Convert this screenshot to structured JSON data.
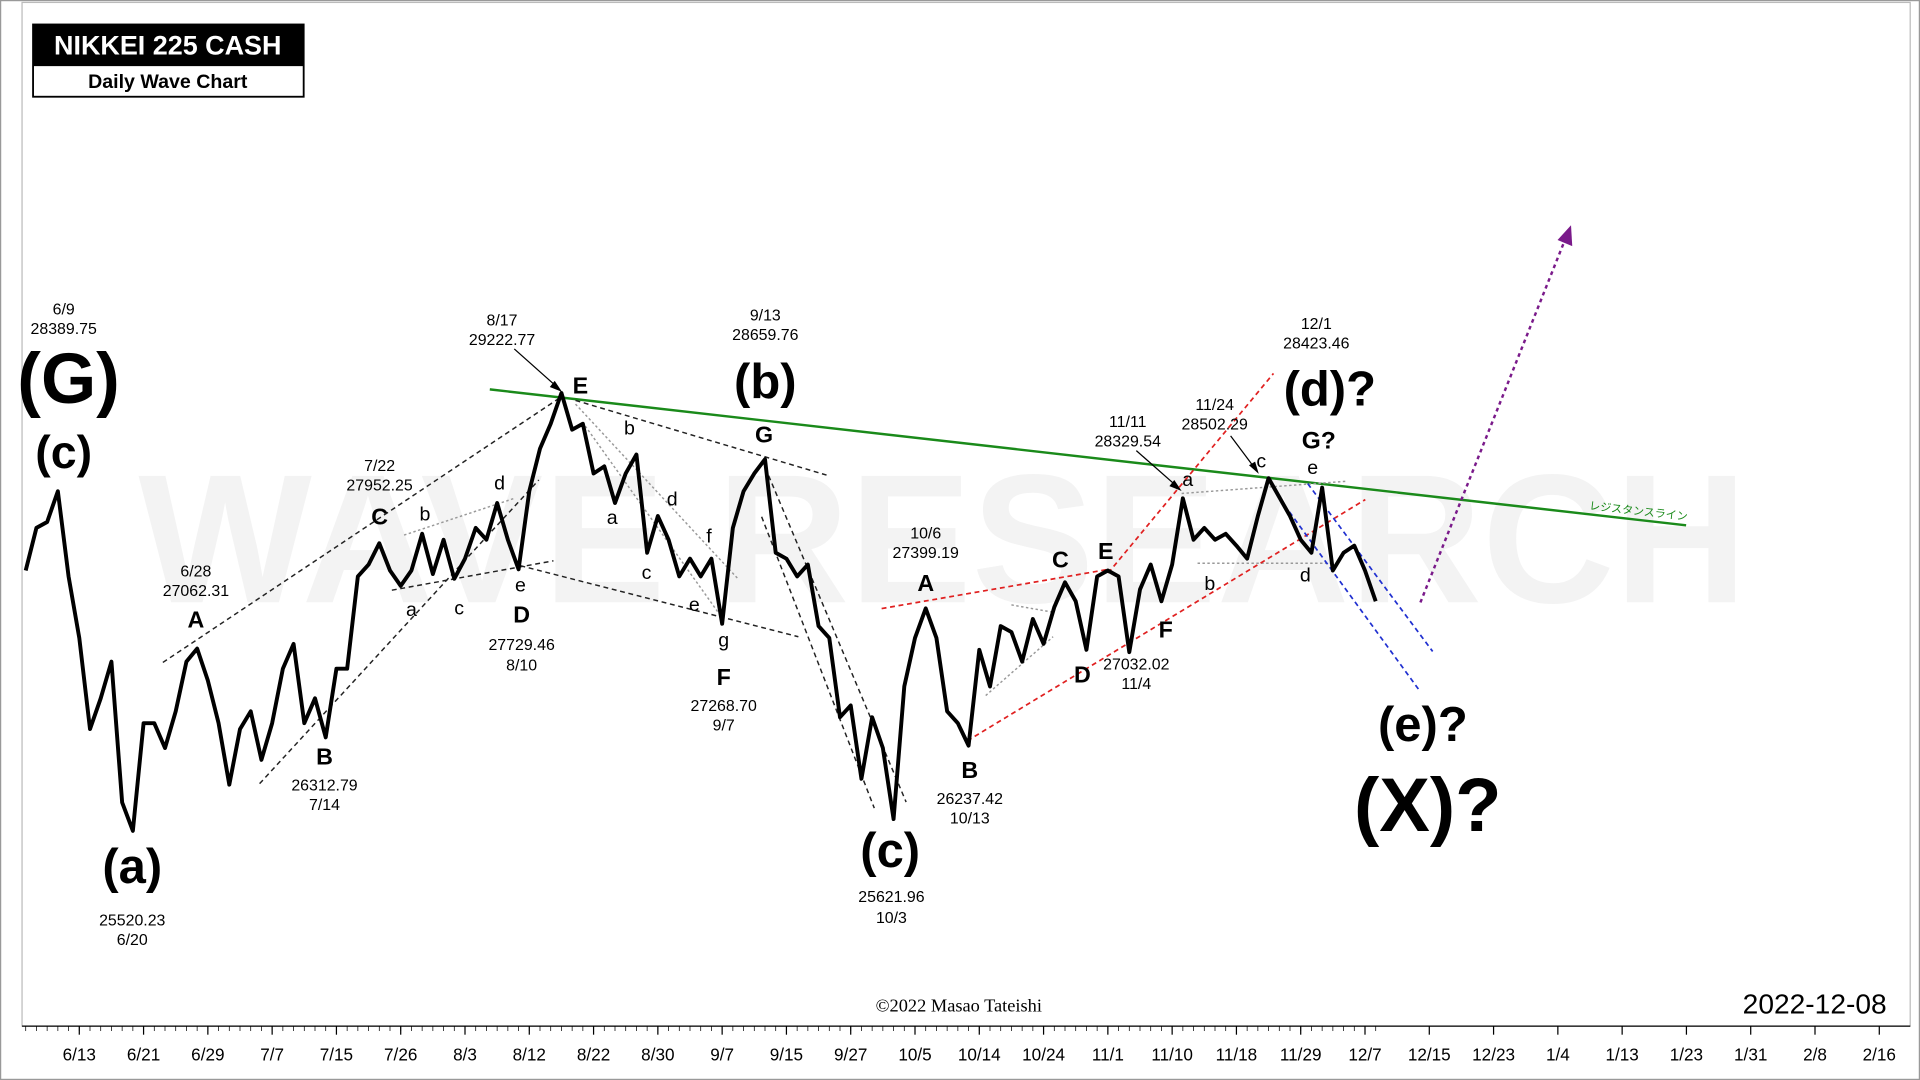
{
  "chart_data": {
    "type": "line",
    "title": "NIKKEI 225 CASH",
    "subtitle": "Daily Wave Chart",
    "x": [
      "6/6",
      "6/7",
      "6/8",
      "6/9",
      "6/10",
      "6/13",
      "6/14",
      "6/15",
      "6/16",
      "6/17",
      "6/20",
      "6/21",
      "6/22",
      "6/23",
      "6/24",
      "6/27",
      "6/28",
      "6/29",
      "6/30",
      "7/1",
      "7/4",
      "7/5",
      "7/6",
      "7/7",
      "7/8",
      "7/11",
      "7/12",
      "7/13",
      "7/14",
      "7/15",
      "7/19",
      "7/20",
      "7/21",
      "7/22",
      "7/25",
      "7/26",
      "7/27",
      "7/28",
      "7/29",
      "8/1",
      "8/2",
      "8/3",
      "8/4",
      "8/5",
      "8/8",
      "8/9",
      "8/10",
      "8/12",
      "8/15",
      "8/16",
      "8/17",
      "8/18",
      "8/19",
      "8/22",
      "8/23",
      "8/24",
      "8/25",
      "8/26",
      "8/29",
      "8/30",
      "8/31",
      "9/1",
      "9/2",
      "9/5",
      "9/6",
      "9/7",
      "9/8",
      "9/9",
      "9/12",
      "9/13",
      "9/14",
      "9/15",
      "9/16",
      "9/20",
      "9/21",
      "9/22",
      "9/26",
      "9/27",
      "9/28",
      "9/29",
      "9/30",
      "10/3",
      "10/4",
      "10/5",
      "10/6",
      "10/7",
      "10/11",
      "10/12",
      "10/13",
      "10/14",
      "10/17",
      "10/18",
      "10/19",
      "10/20",
      "10/21",
      "10/24",
      "10/25",
      "10/26",
      "10/27",
      "10/28",
      "10/31",
      "11/1",
      "11/2",
      "11/4",
      "11/7",
      "11/8",
      "11/9",
      "11/10",
      "11/11",
      "11/14",
      "11/15",
      "11/16",
      "11/17",
      "11/18",
      "11/21",
      "11/22",
      "11/24",
      "11/25",
      "11/28",
      "11/29",
      "11/30",
      "12/1",
      "12/2",
      "12/5",
      "12/6",
      "12/7",
      "12/8"
    ],
    "series": [
      {
        "color": "#000000",
        "values": [
          27720,
          28080,
          28130,
          28390,
          27670,
          27150,
          26380,
          26640,
          26950,
          25760,
          25520,
          26430,
          26430,
          26220,
          26530,
          26950,
          27060,
          26790,
          26430,
          25910,
          26380,
          26530,
          26120,
          26430,
          26890,
          27100,
          26430,
          26640,
          26310,
          26890,
          26890,
          27670,
          27770,
          27950,
          27720,
          27590,
          27720,
          28030,
          27690,
          27980,
          27650,
          27820,
          28080,
          27980,
          28290,
          27980,
          27730,
          28390,
          28750,
          28960,
          29220,
          28910,
          28960,
          28540,
          28600,
          28290,
          28540,
          28700,
          27870,
          28180,
          27980,
          27670,
          27820,
          27670,
          27820,
          27270,
          28080,
          28390,
          28540,
          28660,
          27870,
          27820,
          27670,
          27770,
          27250,
          27150,
          26480,
          26580,
          25960,
          26480,
          26220,
          25620,
          26740,
          27150,
          27400,
          27150,
          26530,
          26430,
          26240,
          27050,
          26740,
          27250,
          27200,
          26950,
          27310,
          27100,
          27410,
          27620,
          27460,
          27050,
          27670,
          27720,
          27670,
          27030,
          27560,
          27770,
          27460,
          27770,
          28330,
          27980,
          28080,
          27980,
          28030,
          27930,
          27820,
          28180,
          28500,
          28340,
          28180,
          27980,
          27870,
          28420,
          27720,
          27870,
          27930,
          27720,
          27460
        ]
      }
    ],
    "ylim": [
      23870,
      32520
    ],
    "xticks": [
      "6/13",
      "6/21",
      "6/29",
      "7/7",
      "7/15",
      "7/26",
      "8/3",
      "8/12",
      "8/22",
      "8/30",
      "9/7",
      "9/15",
      "9/27",
      "10/5",
      "10/14",
      "10/24",
      "11/1",
      "11/10",
      "11/18",
      "11/29",
      "12/7",
      "12/15",
      "12/23",
      "1/4",
      "1/13",
      "1/23",
      "1/31",
      "2/8",
      "2/16"
    ],
    "annotations": [
      "6/9",
      "28389.75",
      "(G)",
      "(c)",
      "6/28",
      "27062.31",
      "A",
      "(a)",
      "25520.23",
      "6/20",
      "B",
      "26312.79",
      "7/14",
      "7/22",
      "27952.25",
      "C",
      "b",
      "a",
      "c",
      "d",
      "e",
      "D",
      "27729.46",
      "8/10",
      "8/17",
      "29222.77",
      "E",
      "b",
      "a",
      "d",
      "c",
      "f",
      "e",
      "g",
      "F",
      "27268.70",
      "9/7",
      "9/13",
      "28659.76",
      "(b)",
      "G",
      "(c)",
      "25621.96",
      "10/3",
      "10/6",
      "27399.19",
      "A",
      "B",
      "26237.42",
      "10/13",
      "C",
      "E",
      "D",
      "F",
      "27032.02",
      "11/4",
      "11/11",
      "28329.54",
      "11/24",
      "28502.29",
      "a",
      "b",
      "c",
      "d",
      "e",
      "G?",
      "12/1",
      "28423.46",
      "(d)?",
      "(e)?",
      "(X)?"
    ],
    "resistance_label": "レジスタンスライン",
    "watermark": "WAVE RESEARCH",
    "copyright": "©2022 Masao Tateishi",
    "date": "2022-12-08"
  }
}
